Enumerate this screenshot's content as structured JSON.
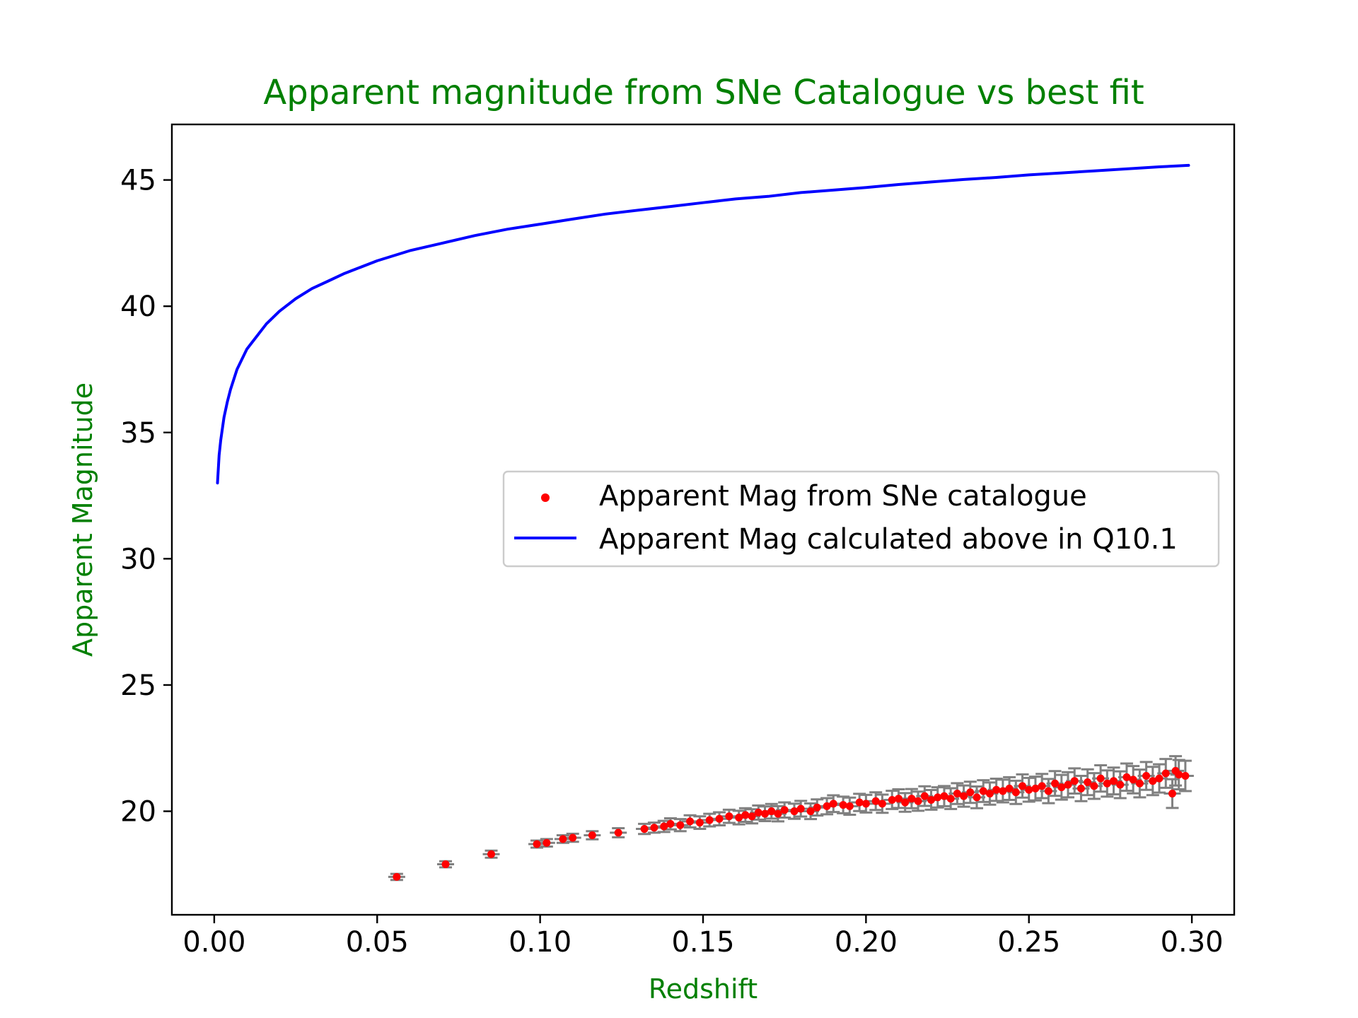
{
  "chart_data": {
    "type": "scatter",
    "title": "Apparent magnitude from SNe Catalogue vs best fit",
    "xlabel": "Redshift",
    "ylabel": "Apparent Magnitude",
    "xlim": [
      -0.013,
      0.313
    ],
    "ylim": [
      15.9,
      47.2
    ],
    "xticks": [
      0.0,
      0.05,
      0.1,
      0.15,
      0.2,
      0.25,
      0.3
    ],
    "xtick_labels": [
      "0.00",
      "0.05",
      "0.10",
      "0.15",
      "0.20",
      "0.25",
      "0.30"
    ],
    "yticks": [
      20,
      25,
      30,
      35,
      40,
      45
    ],
    "ytick_labels": [
      "20",
      "25",
      "30",
      "35",
      "40",
      "45"
    ],
    "grid": false,
    "legend_position": "center-right",
    "colors": {
      "title": "#008000",
      "axis_labels": "#008000",
      "points": "#ff0000",
      "error_bars": "#808080",
      "line": "#0000ff"
    },
    "series": [
      {
        "name": "Apparent Mag from SNe catalogue",
        "kind": "scatter-with-errorbars",
        "x": [
          0.056,
          0.071,
          0.085,
          0.099,
          0.102,
          0.107,
          0.11,
          0.116,
          0.124,
          0.132,
          0.135,
          0.138,
          0.14,
          0.143,
          0.146,
          0.149,
          0.152,
          0.155,
          0.158,
          0.161,
          0.163,
          0.165,
          0.167,
          0.169,
          0.171,
          0.173,
          0.175,
          0.178,
          0.18,
          0.183,
          0.185,
          0.188,
          0.19,
          0.193,
          0.195,
          0.198,
          0.2,
          0.203,
          0.205,
          0.208,
          0.21,
          0.212,
          0.214,
          0.216,
          0.218,
          0.22,
          0.222,
          0.224,
          0.226,
          0.228,
          0.23,
          0.232,
          0.234,
          0.236,
          0.238,
          0.24,
          0.242,
          0.244,
          0.246,
          0.248,
          0.25,
          0.252,
          0.254,
          0.256,
          0.258,
          0.26,
          0.262,
          0.264,
          0.266,
          0.268,
          0.27,
          0.272,
          0.274,
          0.276,
          0.278,
          0.28,
          0.282,
          0.284,
          0.286,
          0.288,
          0.29,
          0.292,
          0.294,
          0.295,
          0.296,
          0.298
        ],
        "y": [
          17.4,
          17.9,
          18.3,
          18.7,
          18.75,
          18.9,
          18.95,
          19.05,
          19.15,
          19.3,
          19.35,
          19.4,
          19.5,
          19.45,
          19.6,
          19.55,
          19.65,
          19.7,
          19.8,
          19.75,
          19.85,
          19.8,
          19.95,
          19.9,
          20.0,
          19.9,
          20.05,
          20.0,
          20.1,
          20.0,
          20.15,
          20.2,
          20.3,
          20.25,
          20.2,
          20.35,
          20.3,
          20.4,
          20.3,
          20.45,
          20.5,
          20.35,
          20.5,
          20.4,
          20.6,
          20.45,
          20.55,
          20.6,
          20.5,
          20.7,
          20.6,
          20.75,
          20.55,
          20.8,
          20.7,
          20.85,
          20.8,
          20.9,
          20.75,
          21.0,
          20.85,
          20.9,
          21.0,
          20.8,
          21.1,
          20.95,
          21.05,
          21.2,
          20.9,
          21.15,
          21.0,
          21.3,
          21.1,
          21.2,
          21.05,
          21.35,
          21.25,
          21.1,
          21.4,
          21.2,
          21.3,
          21.5,
          20.7,
          21.6,
          21.45,
          21.4
        ],
        "err": [
          0.12,
          0.12,
          0.14,
          0.14,
          0.15,
          0.15,
          0.16,
          0.16,
          0.18,
          0.2,
          0.2,
          0.22,
          0.22,
          0.24,
          0.24,
          0.25,
          0.25,
          0.26,
          0.26,
          0.27,
          0.27,
          0.28,
          0.28,
          0.29,
          0.29,
          0.3,
          0.3,
          0.3,
          0.31,
          0.31,
          0.32,
          0.32,
          0.33,
          0.33,
          0.34,
          0.34,
          0.35,
          0.35,
          0.36,
          0.36,
          0.37,
          0.37,
          0.38,
          0.38,
          0.39,
          0.39,
          0.4,
          0.4,
          0.41,
          0.41,
          0.42,
          0.42,
          0.43,
          0.43,
          0.44,
          0.44,
          0.45,
          0.45,
          0.46,
          0.46,
          0.47,
          0.47,
          0.48,
          0.48,
          0.49,
          0.49,
          0.5,
          0.5,
          0.5,
          0.51,
          0.51,
          0.52,
          0.52,
          0.53,
          0.53,
          0.54,
          0.54,
          0.55,
          0.55,
          0.56,
          0.56,
          0.57,
          0.57,
          0.58,
          0.58,
          0.6
        ]
      },
      {
        "name": "Apparent Mag calculated above in Q10.1",
        "kind": "line",
        "x": [
          0.001,
          0.0015,
          0.002,
          0.003,
          0.004,
          0.005,
          0.007,
          0.01,
          0.013,
          0.016,
          0.02,
          0.025,
          0.03,
          0.035,
          0.04,
          0.05,
          0.06,
          0.07,
          0.08,
          0.09,
          0.1,
          0.11,
          0.12,
          0.13,
          0.14,
          0.15,
          0.16,
          0.17,
          0.18,
          0.19,
          0.2,
          0.21,
          0.22,
          0.23,
          0.24,
          0.25,
          0.26,
          0.27,
          0.28,
          0.29,
          0.299
        ],
        "y": [
          33.0,
          34.1,
          34.7,
          35.6,
          36.2,
          36.7,
          37.5,
          38.3,
          38.8,
          39.3,
          39.8,
          40.3,
          40.7,
          41.0,
          41.3,
          41.8,
          42.2,
          42.5,
          42.8,
          43.05,
          43.25,
          43.45,
          43.65,
          43.8,
          43.95,
          44.1,
          44.25,
          44.35,
          44.5,
          44.6,
          44.7,
          44.82,
          44.92,
          45.02,
          45.1,
          45.2,
          45.28,
          45.36,
          45.44,
          45.52,
          45.58
        ]
      }
    ]
  }
}
